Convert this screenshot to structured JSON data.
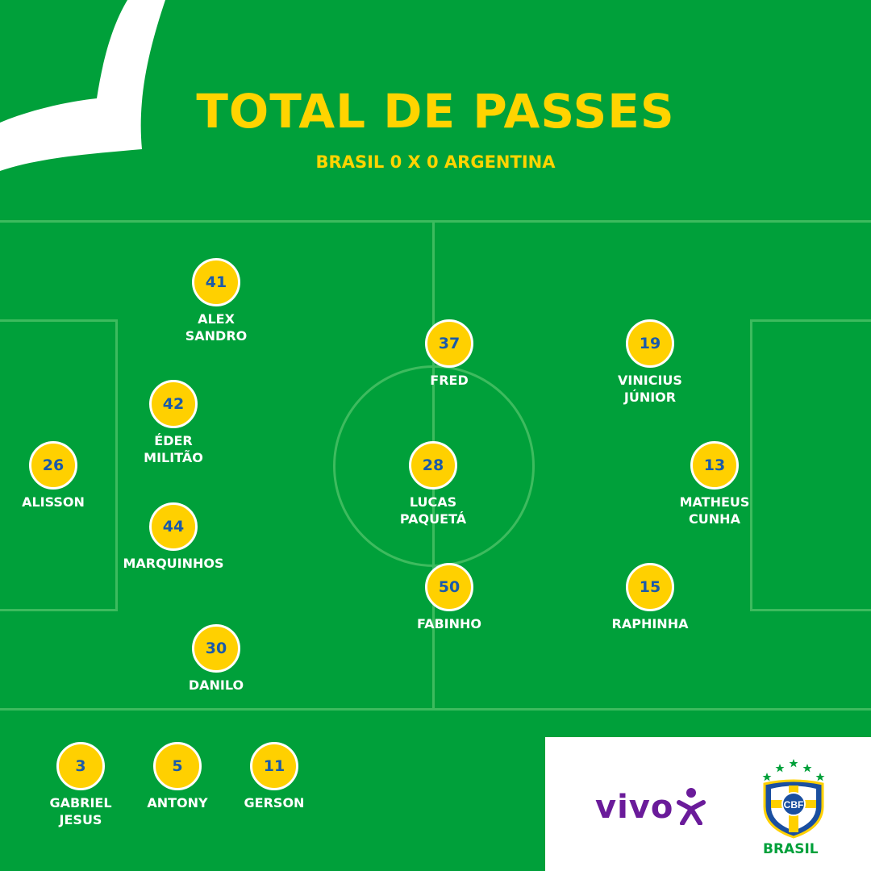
{
  "title": "TOTAL DE PASSES",
  "subtitle": "BRASIL 0 X 0 ARGENTINA",
  "starters": [
    {
      "value": "41",
      "name": "ALEX\nSANDRO"
    },
    {
      "value": "42",
      "name": "ÉDER\nMILITÃO"
    },
    {
      "value": "26",
      "name": "ALISSON"
    },
    {
      "value": "44",
      "name": "MARQUINHOS"
    },
    {
      "value": "30",
      "name": "DANILO"
    },
    {
      "value": "37",
      "name": "FRED"
    },
    {
      "value": "28",
      "name": "LUCAS\nPAQUETÁ"
    },
    {
      "value": "50",
      "name": "FABINHO"
    },
    {
      "value": "19",
      "name": "VINICIUS\nJÚNIOR"
    },
    {
      "value": "13",
      "name": "MATHEUS\nCUNHA"
    },
    {
      "value": "15",
      "name": "RAPHINHA"
    }
  ],
  "substitutes": [
    {
      "value": "3",
      "name": "GABRIEL\nJESUS"
    },
    {
      "value": "5",
      "name": "ANTONY"
    },
    {
      "value": "11",
      "name": "GERSON"
    }
  ],
  "sponsor": {
    "name": "vivo",
    "icon": "vivo-figure-icon"
  },
  "crest": {
    "letters": "CBF",
    "label": "BRASIL",
    "icon": "cbf-crest-icon"
  },
  "colors": {
    "field": "#00a03a",
    "badge": "#ffd000",
    "accent": "#ffd400",
    "number": "#1a5aaa",
    "sponsor": "#6a1b9a"
  }
}
